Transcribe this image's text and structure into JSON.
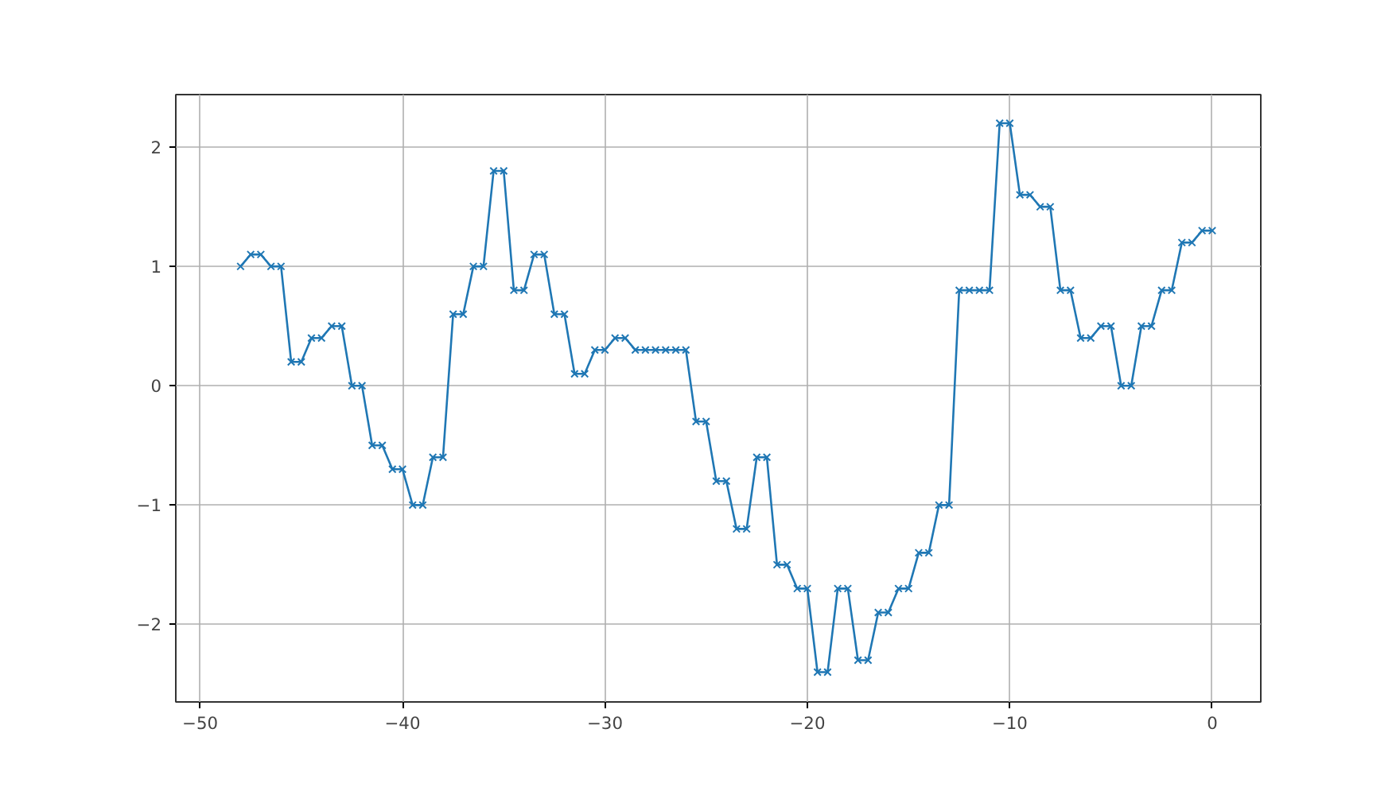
{
  "chart_data": {
    "type": "line",
    "x": [
      -48,
      -47.5,
      -47,
      -46.5,
      -46,
      -45.5,
      -45,
      -44.5,
      -44,
      -43.5,
      -43,
      -42.5,
      -42,
      -41.5,
      -41,
      -40.5,
      -40,
      -39.5,
      -39,
      -38.5,
      -38,
      -37.5,
      -37,
      -36.5,
      -36,
      -35.5,
      -35,
      -34.5,
      -34,
      -33.5,
      -33,
      -32.5,
      -32,
      -31.5,
      -31,
      -30.5,
      -30,
      -29.5,
      -29,
      -28.5,
      -28,
      -27.5,
      -27,
      -26.5,
      -26,
      -25.5,
      -25,
      -24.5,
      -24,
      -23.5,
      -23,
      -22.5,
      -22,
      -21.5,
      -21,
      -20.5,
      -20,
      -19.5,
      -19,
      -18.5,
      -18,
      -17.5,
      -17,
      -16.5,
      -16,
      -15.5,
      -15,
      -14.5,
      -14,
      -13.5,
      -13,
      -12.5,
      -12,
      -11.5,
      -11,
      -10.5,
      -10,
      -9.5,
      -9,
      -8.5,
      -8,
      -7.5,
      -7,
      -6.5,
      -6,
      -5.5,
      -5,
      -4.5,
      -4,
      -3.5,
      -3,
      -2.5,
      -2,
      -1.5,
      -1,
      -0.5,
      0
    ],
    "series": [
      {
        "color": "#1f77b4",
        "values": [
          1.0,
          1.1,
          1.1,
          1.0,
          1.0,
          0.2,
          0.2,
          0.4,
          0.4,
          0.5,
          0.5,
          0,
          0,
          -0.5,
          -0.5,
          -0.7,
          -0.7,
          -1,
          -1,
          -0.6,
          -0.6,
          0.6,
          0.6,
          1.0,
          1.0,
          1.8,
          1.8,
          0.8,
          0.8,
          1.1,
          1.1,
          0.6,
          0.6,
          0.1,
          0.1,
          0.3,
          0.3,
          0.4,
          0.4,
          0.3,
          0.3,
          0.3,
          0.3,
          0.3,
          0.3,
          -0.3,
          -0.3,
          -0.8,
          -0.8,
          -1.2,
          -1.2,
          -0.6,
          -0.6,
          -1.5,
          -1.5,
          -1.7,
          -1.7,
          -2.4,
          -2.4,
          -1.7,
          -1.7,
          -2.3,
          -2.3,
          -1.9,
          -1.9,
          -1.7,
          -1.7,
          -1.4,
          -1.4,
          -1.0,
          -1.0,
          0.8,
          0.8,
          0.8,
          0.8,
          2.2,
          2.2,
          1.6,
          1.6,
          1.5,
          1.5,
          0.8,
          0.8,
          0.4,
          0.4,
          0.5,
          0.5,
          0,
          0,
          0.5,
          0.5,
          0.8,
          0.8,
          1.2,
          1.2,
          1.3,
          1.3
        ]
      }
    ],
    "xlim": [
      -51.2,
      2.4
    ],
    "ylim": [
      -2.65,
      2.44
    ],
    "xticks": [
      -50,
      -40,
      -30,
      -20,
      -10,
      0
    ],
    "yticks": [
      -2,
      -1,
      0,
      1,
      2
    ],
    "grid": true,
    "marker": "cross",
    "line_style": "solid"
  }
}
